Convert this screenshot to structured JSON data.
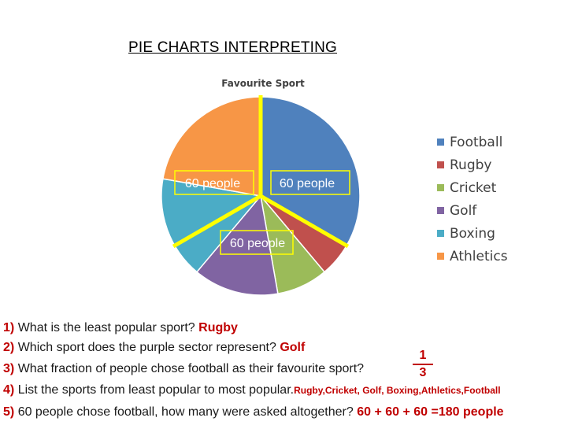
{
  "title": "PIE CHARTS INTERPRETING",
  "chart_data": {
    "type": "pie",
    "title": "Favourite Sport",
    "categories": [
      "Football",
      "Rugby",
      "Cricket",
      "Golf",
      "Boxing",
      "Athletics"
    ],
    "values": [
      60,
      10,
      15,
      25,
      30,
      40
    ],
    "colors": [
      "#4f81bd",
      "#c0504d",
      "#9bbb59",
      "#8064a2",
      "#4bacc6",
      "#f79646"
    ],
    "legend_position": "right",
    "annotations": [
      "60 people",
      "60 people",
      "60 people"
    ]
  },
  "questions": [
    {
      "num": "1)",
      "text": "What is the least popular sport?",
      "answer": "Rugby"
    },
    {
      "num": "2)",
      "text": "Which sport does the purple sector represent?",
      "answer": "Golf"
    },
    {
      "num": "3)",
      "text": "What fraction of people chose football as their favourite sport?",
      "answer_num": "1",
      "answer_den": "3"
    },
    {
      "num": "4)",
      "text": "List the sports from least popular to most popular.",
      "answer": "Rugby,Cricket, Golf, Boxing,Athletics,Football"
    },
    {
      "num": "5)",
      "text": "60 people chose football, how many were asked altogether?",
      "answer_eq": "60 + 60 + 60 =",
      "answer": "180 people"
    }
  ]
}
